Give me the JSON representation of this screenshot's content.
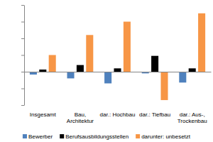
{
  "chart_data": {
    "type": "bar",
    "categories": [
      "Insgesamt",
      "Bau, Architektur",
      "dar.: Hochbau",
      "dar.: Tiefbau",
      "dar.: Aus-, Trockenbau"
    ],
    "series": [
      {
        "name": "Bewerber",
        "color": "#4f81bd",
        "values": [
          -1.7,
          -4,
          -7,
          -1,
          -6.5
        ]
      },
      {
        "name": "Berufsausbildungsstellen",
        "color": "#000000",
        "values": [
          1.3,
          4,
          2,
          9.5,
          2
        ]
      },
      {
        "name": "darunter: unbesetzt",
        "color": "#f79646",
        "values": [
          10,
          22,
          30,
          -17,
          35
        ]
      }
    ],
    "ylim": [
      -20,
      40
    ],
    "yticks": [
      -20,
      -10,
      0,
      10,
      20,
      30,
      40
    ],
    "grid": false,
    "legend": "bottom",
    "tick_labels": "x"
  }
}
